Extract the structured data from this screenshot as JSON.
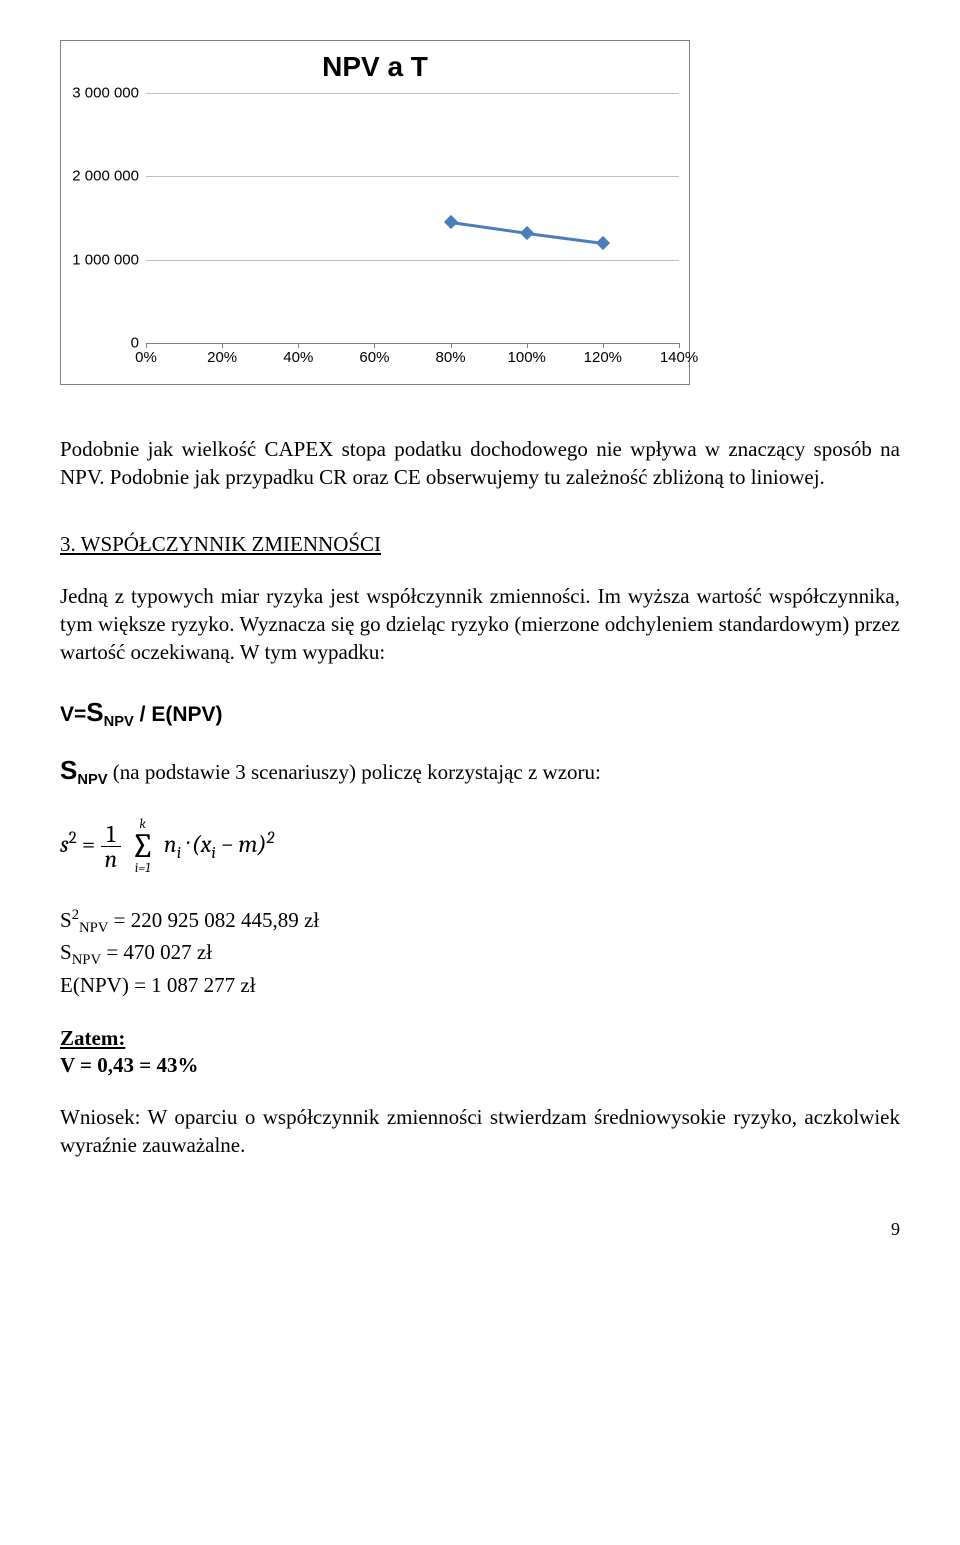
{
  "chart": {
    "type": "line",
    "title": "NPV a T",
    "title_fontsize": 28,
    "y_ticks": [
      "0",
      "1 000 000",
      "2 000 000",
      "3 000 000"
    ],
    "y_values": [
      0,
      1000000,
      2000000,
      3000000
    ],
    "ylim": [
      0,
      3000000
    ],
    "x_ticks": [
      "0%",
      "20%",
      "40%",
      "60%",
      "80%",
      "100%",
      "120%",
      "140%"
    ],
    "x_values": [
      0,
      20,
      40,
      60,
      80,
      100,
      120,
      140
    ],
    "xlim": [
      0,
      140
    ],
    "series": {
      "points": [
        {
          "x": 80,
          "y": 1450000
        },
        {
          "x": 100,
          "y": 1320000
        },
        {
          "x": 120,
          "y": 1200000
        }
      ],
      "marker": "diamond",
      "marker_color": "#4a7ebb",
      "line_color": "#4a7ebb",
      "line_width": 3
    },
    "grid_color": "#bfbfbf",
    "axis_color": "#808080",
    "background_color": "#ffffff",
    "tick_font": "Arial",
    "tick_fontsize": 15
  },
  "para1": "Podobnie jak wielkość CAPEX stopa podatku dochodowego nie wpływa w znaczący sposób na NPV. Podobnie jak przypadku CR oraz CE obserwujemy tu zależność zbliżoną to liniowej.",
  "section": {
    "number": "3.",
    "title": "WSPÓŁCZYNNIK ZMIENNOŚCI"
  },
  "para2": "Jedną z typowych miar ryzyka jest współczynnik zmienności. Im wyższa wartość współczynnika, tym większe ryzyko. Wyznacza się go dzieląc ryzyko (mierzone odchyleniem standardowym) przez wartość oczekiwaną. W tym wypadku:",
  "formula_main": {
    "lhs_pre": "V=",
    "lhs_S": "S",
    "sub": "NPV",
    "mid": " / E(NPV)"
  },
  "formula_desc": {
    "S": "S",
    "sub": "NPV",
    "rest": " (na podstawie 3 scenariuszy) policzę korzystając z wzoru:"
  },
  "formula_sigma": {
    "lhs": "s",
    "sup2": "2",
    "eq": " = ",
    "frac_num": "1",
    "frac_den": "n",
    "sigma_top": "k",
    "sigma_bot": "i=1",
    "term": "nᵢ · (xᵢ − m)²"
  },
  "calcs": {
    "l1_a": "S",
    "l1_sup": "2",
    "l1_sub": "NPV",
    "l1_b": " = 220 925 082 445,89 zł",
    "l2_a": "S",
    "l2_sub": "NPV",
    "l2_b": " = 470 027 zł",
    "l3": "E(NPV) = 1 087 277 zł"
  },
  "zatem_label": "Zatem:",
  "zatem_value": "V = 0,43 = 43%",
  "wniosek": "Wniosek: W oparciu o współczynnik zmienności stwierdzam średniowysokie ryzyko, aczkolwiek wyraźnie zauważalne.",
  "page_number": "9"
}
